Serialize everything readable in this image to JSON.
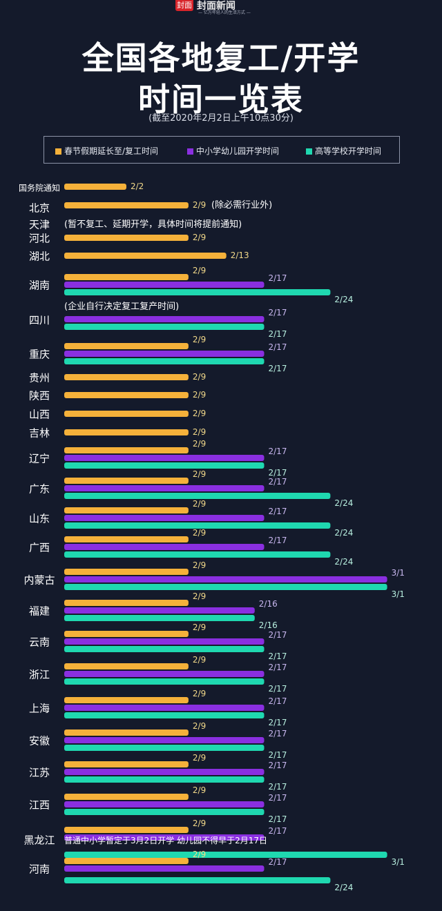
{
  "header": {
    "logo_mark": "封面",
    "logo_name": "封面新闻",
    "logo_slogan": "— 亿万年轻人的生活方式 —",
    "title_line1": "全国各地复工/开学",
    "title_line2": "时间一览表",
    "subtitle": "(截至2020年2月2日上午10点30分)"
  },
  "legend": [
    {
      "label": "春节假期延长至/复工时间",
      "color": "#f5b13a"
    },
    {
      "label": "中小学幼儿园开学时间",
      "color": "#8a2fe0"
    },
    {
      "label": "高等学校开学时间",
      "color": "#1fd8b0"
    }
  ],
  "chart_data": {
    "type": "bar",
    "orientation": "horizontal",
    "series": [
      {
        "name": "春节假期延长至/复工时间",
        "color": "#f5b13a"
      },
      {
        "name": "中小学幼儿园开学时间",
        "color": "#8a2fe0"
      },
      {
        "name": "高等学校开学时间",
        "color": "#1fd8b0"
      }
    ],
    "rows": [
      {
        "region": "国务院通知",
        "bars": [
          {
            "s": 0,
            "date": "2/2"
          }
        ]
      },
      {
        "region": "北京",
        "bars": [
          {
            "s": 0,
            "date": "2/9"
          }
        ],
        "note": "(除必需行业外)"
      },
      {
        "region": "天津",
        "bars": [],
        "note": "(暂不复工、延期开学，具体时间将提前通知)"
      },
      {
        "region": "河北",
        "bars": [
          {
            "s": 0,
            "date": "2/9"
          }
        ]
      },
      {
        "region": "湖北",
        "bars": [
          {
            "s": 0,
            "date": "2/13"
          }
        ]
      },
      {
        "region": "湖南",
        "bars": [
          {
            "s": 0,
            "date": "2/9"
          },
          {
            "s": 1,
            "date": "2/17"
          },
          {
            "s": 2,
            "date": "2/24"
          }
        ]
      },
      {
        "region": "四川",
        "bars": [
          {
            "s": 1,
            "date": "2/17"
          },
          {
            "s": 2,
            "date": "2/17"
          }
        ],
        "note": "(企业自行决定复工复产时间)"
      },
      {
        "region": "重庆",
        "bars": [
          {
            "s": 0,
            "date": "2/9"
          },
          {
            "s": 1,
            "date": "2/17"
          },
          {
            "s": 2,
            "date": "2/17"
          }
        ]
      },
      {
        "region": "贵州",
        "bars": [
          {
            "s": 0,
            "date": "2/9"
          }
        ]
      },
      {
        "region": "陕西",
        "bars": [
          {
            "s": 0,
            "date": "2/9"
          }
        ]
      },
      {
        "region": "山西",
        "bars": [
          {
            "s": 0,
            "date": "2/9"
          }
        ]
      },
      {
        "region": "吉林",
        "bars": [
          {
            "s": 0,
            "date": "2/9"
          }
        ]
      },
      {
        "region": "辽宁",
        "bars": [
          {
            "s": 0,
            "date": "2/9"
          },
          {
            "s": 1,
            "date": "2/17"
          },
          {
            "s": 2,
            "date": "2/17"
          }
        ]
      },
      {
        "region": "广东",
        "bars": [
          {
            "s": 0,
            "date": "2/9"
          },
          {
            "s": 1,
            "date": "2/17"
          },
          {
            "s": 2,
            "date": "2/24"
          }
        ]
      },
      {
        "region": "山东",
        "bars": [
          {
            "s": 0,
            "date": "2/9"
          },
          {
            "s": 1,
            "date": "2/17"
          },
          {
            "s": 2,
            "date": "2/24"
          }
        ]
      },
      {
        "region": "广西",
        "bars": [
          {
            "s": 0,
            "date": "2/9"
          },
          {
            "s": 1,
            "date": "2/17"
          },
          {
            "s": 2,
            "date": "2/24"
          }
        ]
      },
      {
        "region": "内蒙古",
        "bars": [
          {
            "s": 0,
            "date": "2/9"
          },
          {
            "s": 1,
            "date": "3/1"
          },
          {
            "s": 2,
            "date": "3/1"
          }
        ]
      },
      {
        "region": "福建",
        "bars": [
          {
            "s": 0,
            "date": "2/9"
          },
          {
            "s": 1,
            "date": "2/16"
          },
          {
            "s": 2,
            "date": "2/16"
          }
        ]
      },
      {
        "region": "云南",
        "bars": [
          {
            "s": 0,
            "date": "2/9"
          },
          {
            "s": 1,
            "date": "2/17"
          },
          {
            "s": 2,
            "date": "2/17"
          }
        ]
      },
      {
        "region": "浙江",
        "bars": [
          {
            "s": 0,
            "date": "2/9"
          },
          {
            "s": 1,
            "date": "2/17"
          },
          {
            "s": 2,
            "date": "2/17"
          }
        ]
      },
      {
        "region": "上海",
        "bars": [
          {
            "s": 0,
            "date": "2/9"
          },
          {
            "s": 1,
            "date": "2/17"
          },
          {
            "s": 2,
            "date": "2/17"
          }
        ]
      },
      {
        "region": "安徽",
        "bars": [
          {
            "s": 0,
            "date": "2/9"
          },
          {
            "s": 1,
            "date": "2/17"
          },
          {
            "s": 2,
            "date": "2/17"
          }
        ]
      },
      {
        "region": "江苏",
        "bars": [
          {
            "s": 0,
            "date": "2/9"
          },
          {
            "s": 1,
            "date": "2/17"
          },
          {
            "s": 2,
            "date": "2/17"
          }
        ]
      },
      {
        "region": "江西",
        "bars": [
          {
            "s": 0,
            "date": "2/9"
          },
          {
            "s": 1,
            "date": "2/17"
          },
          {
            "s": 2,
            "date": "2/17"
          }
        ]
      },
      {
        "region": "黑龙江",
        "bars": [
          {
            "s": 0,
            "date": "2/9"
          },
          {
            "s": 1,
            "date": "2/17"
          },
          {
            "s": 2,
            "date": "3/1"
          }
        ],
        "note": "普通中小学暂定于3月2日开学 幼儿园不得早于2月17日"
      },
      {
        "region": "河南",
        "bars": [
          {
            "s": 0,
            "date": "2/9"
          },
          {
            "s": 1,
            "date": "2/17"
          },
          {
            "s": 2,
            "date": "2/24"
          }
        ]
      }
    ]
  }
}
